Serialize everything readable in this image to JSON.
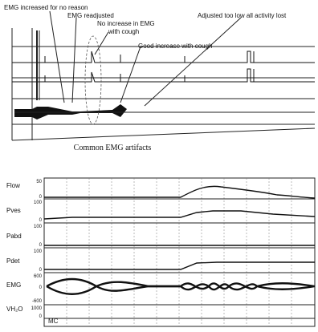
{
  "top_figure": {
    "annotations": [
      "EMG increased for no reason",
      "EMG readjusted",
      "No increase in EMG",
      "with cough",
      "Good increase with cough",
      "Adjusted too low all activity lost"
    ],
    "caption": "Common EMG artifacts"
  },
  "bottom_figure": {
    "channels": [
      {
        "label": "Flow",
        "scale": [
          "50",
          "0"
        ]
      },
      {
        "label": "Pves",
        "scale": [
          "100",
          "0"
        ]
      },
      {
        "label": "Pabd",
        "scale": [
          "100",
          "0"
        ]
      },
      {
        "label": "Pdet",
        "scale": [
          "100",
          "0"
        ]
      },
      {
        "label": "EMG",
        "scale": [
          "600",
          "0",
          "-600"
        ]
      },
      {
        "label": "VH₂O",
        "scale": [
          "1000",
          "0"
        ]
      }
    ],
    "footer": "MC"
  }
}
